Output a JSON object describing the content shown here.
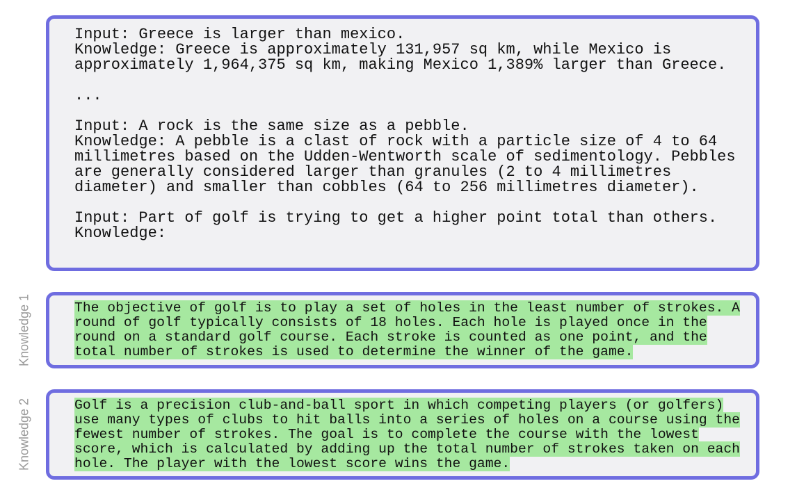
{
  "prompt": {
    "blocks": [
      [
        "Input: Greece is larger than mexico.",
        "Knowledge: Greece is approximately 131,957 sq km, while Mexico is",
        "approximately 1,964,375 sq km, making Mexico 1,389% larger than Greece."
      ],
      [
        "..."
      ],
      [
        "Input: A rock is the same size as a pebble.",
        "Knowledge: A pebble is a clast of rock with a particle size of 4 to 64",
        "millimetres based on the Udden-Wentworth scale of sedimentology. Pebbles",
        "are generally considered larger than granules (2 to 4 millimetres",
        "diameter) and smaller than cobbles (64 to 256 millimetres diameter)."
      ],
      [
        "Input: Part of golf is trying to get a higher point total than others.",
        "Knowledge:"
      ]
    ]
  },
  "knowledge": [
    {
      "label": "Knowledge 1",
      "lines": [
        "The objective of golf is to play a set of holes in the least number of strokes. A",
        "round of golf typically consists of 18 holes. Each hole is played once in the",
        "round on a standard golf course. Each stroke is counted as one point, and the",
        "total number of strokes is used to determine the winner of the game."
      ]
    },
    {
      "label": "Knowledge 2",
      "lines": [
        "Golf is a precision club-and-ball sport in which competing players (or golfers)",
        "use many types of clubs to hit balls into a series of holes on a course using the",
        "fewest number of strokes. The goal is to complete the course with the lowest",
        "score, which is calculated by adding up the total number of strokes taken on each",
        "hole. The player with the lowest score wins the game."
      ]
    }
  ]
}
